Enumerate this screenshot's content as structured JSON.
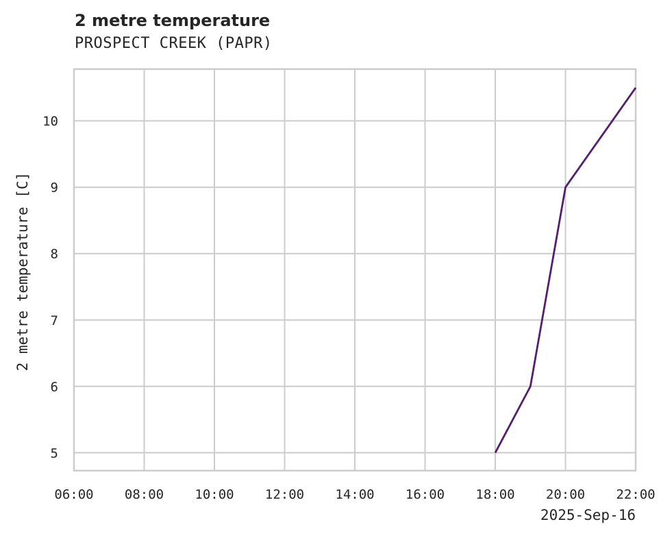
{
  "chart_data": {
    "type": "line",
    "title": "2 metre temperature",
    "subtitle": "PROSPECT CREEK (PAPR)",
    "xlabel": "",
    "x_offset_label": "2025-Sep-16",
    "ylabel": "2 metre temperature [C]",
    "x_ticks": [
      "06:00",
      "08:00",
      "10:00",
      "12:00",
      "14:00",
      "16:00",
      "18:00",
      "20:00",
      "22:00"
    ],
    "y_ticks": [
      5,
      6,
      7,
      8,
      9,
      10
    ],
    "xlim": [
      "06:00",
      "22:00"
    ],
    "ylim": [
      4.73,
      10.78
    ],
    "grid": true,
    "legend": null,
    "series": [
      {
        "name": "2 metre temperature",
        "color": "#541e6e",
        "x": [
          "18:00",
          "19:00",
          "20:00",
          "22:00"
        ],
        "values": [
          5,
          6,
          9,
          10.5
        ]
      }
    ]
  },
  "colors": {
    "grid": "#cccccc",
    "frame": "#cccccc",
    "text": "#262626",
    "line": "#541e6e",
    "background": "#ffffff"
  }
}
